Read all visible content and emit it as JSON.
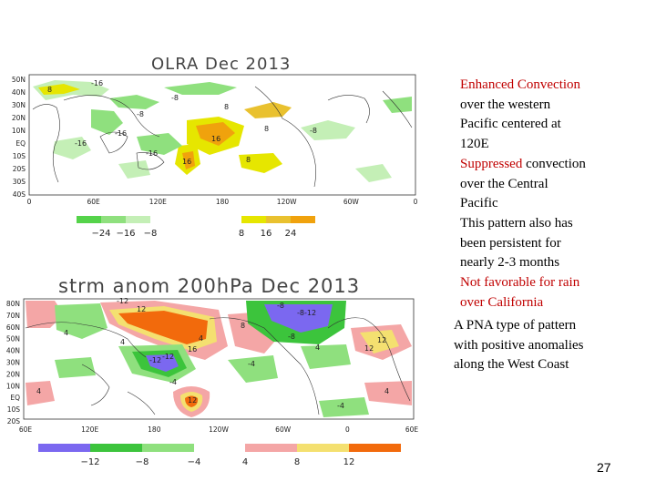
{
  "chart_data": [
    {
      "type": "heatmap",
      "title": "OLRA   Dec 2013",
      "y_ticks": [
        "50N",
        "40N",
        "30N",
        "20N",
        "10N",
        "EQ",
        "10S",
        "20S",
        "30S",
        "40S"
      ],
      "x_ticks": [
        "0",
        "60E",
        "120E",
        "180",
        "120W",
        "60W",
        "0"
      ],
      "contour_labels": [
        "-16",
        "-16",
        "-8",
        "-8",
        "8",
        "8",
        "16",
        "16",
        "-16",
        "-8",
        "8",
        "-16",
        "8"
      ],
      "legend": {
        "labels": [
          "−24",
          "−16",
          "−8",
          "8",
          "16",
          "24"
        ],
        "colors": [
          "#55d34a",
          "#8fe07e",
          "#c4efb6",
          "#e6e600",
          "#e9c12f",
          "#f0a20d"
        ]
      }
    },
    {
      "type": "heatmap",
      "title": "strm anom 200hPa Dec 2013",
      "y_ticks": [
        "80N",
        "70N",
        "60N",
        "50N",
        "40N",
        "30N",
        "20N",
        "10N",
        "EQ",
        "10S",
        "20S"
      ],
      "x_ticks": [
        "60E",
        "120E",
        "180",
        "120W",
        "60W",
        "0",
        "60E"
      ],
      "contour_labels": [
        "-12",
        "12",
        "-8",
        "-12",
        "-8",
        "4",
        "4",
        "-12",
        "16",
        "4",
        "12",
        "-4",
        "4",
        "-4",
        "12",
        "-12",
        "4",
        "-8",
        "12",
        "-4",
        "4",
        "8"
      ],
      "legend": {
        "labels": [
          "−12",
          "−8",
          "−4",
          "4",
          "8",
          "12"
        ],
        "colors": [
          "#7b68f0",
          "#3cc43c",
          "#8fe07e",
          "#f4a6a6",
          "#f4e070",
          "#f26a0c"
        ]
      }
    }
  ],
  "text": {
    "line1": "Enhanced Convection",
    "line2": "over the  western",
    "line3": "Pacific centered at",
    "line4": "120E",
    "suppressed": "Suppressed",
    "line5_rest": " convection",
    "line6": "over the Central",
    "line7": "Pacific",
    "line8": "This pattern also has",
    "line9": "been persistent for",
    "line10": "nearly 2-3 months",
    "line11": "Not favorable for rain",
    "line12": "over California",
    "pna1": "A PNA type of pattern",
    "pna2": "with positive anomalies",
    "pna3": "along the West Coast"
  },
  "slide_number": "27"
}
